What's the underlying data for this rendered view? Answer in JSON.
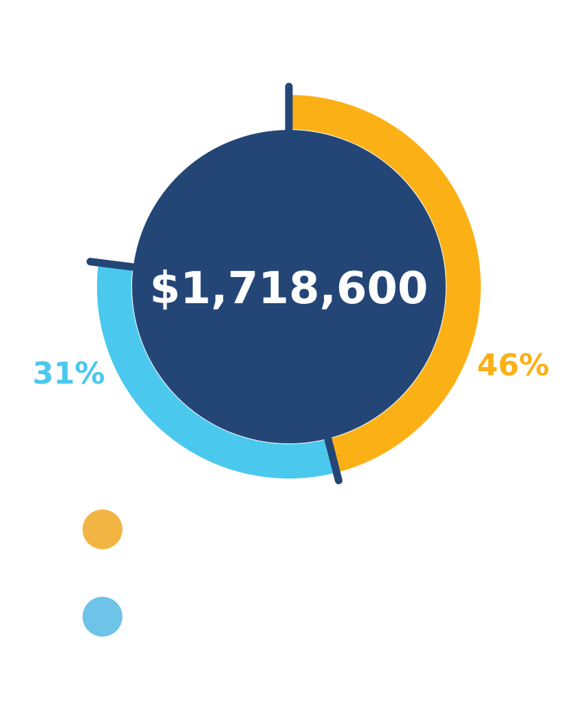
{
  "chart_data": {
    "type": "pie",
    "total_label": "$1,718,600",
    "slices": [
      {
        "percent": 46,
        "label": "46%",
        "color": "#FBB116"
      },
      {
        "percent": 31,
        "label": "31%",
        "color": "#4BC8EE"
      }
    ],
    "legend_markers": [
      {
        "color": "#F2B544"
      },
      {
        "color": "#6EC3E8"
      }
    ],
    "center_color": "#244677",
    "divider_color": "#244677"
  }
}
